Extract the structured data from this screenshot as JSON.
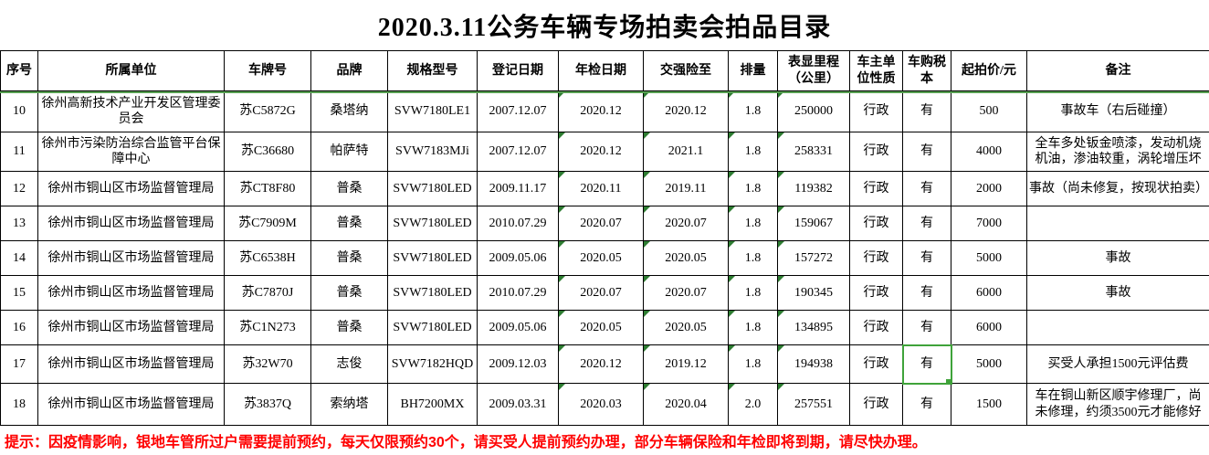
{
  "title": "2020.3.11公务车辆专场拍卖会拍品目录",
  "note": "提示：因疫情影响，银地车管所过户需要提前预约，每天仅限预约30个，请买受人提前预约办理，部分车辆保险和年检即将到期，请尽快办理。",
  "colors": {
    "selection_green": "#3fa33a",
    "flag_green": "#2e7d32",
    "pane_line_green": "#57a052",
    "note_red": "#ff0000",
    "grid_black": "#000000"
  },
  "table": {
    "headers": [
      "序号",
      "所属单位",
      "车牌号",
      "品牌",
      "规格型号",
      "登记日期",
      "年检日期",
      "交强险至",
      "排量",
      "表显里程（公里）",
      "车主单位性质",
      "车购税本",
      "起拍价/元",
      "备注"
    ],
    "flag_columns": [
      6,
      7,
      8,
      9
    ],
    "selection": {
      "row_index": 7,
      "col_index": 11
    },
    "rows": [
      [
        "10",
        "徐州高新技术产业开发区管理委员会",
        "苏C5872G",
        "桑塔纳",
        "SVW7180LE1",
        "2007.12.07",
        "2020.12",
        "2020.12",
        "1.8",
        "250000",
        "行政",
        "有",
        "500",
        "事故车（右后碰撞）"
      ],
      [
        "11",
        "徐州市污染防治综合监管平台保障中心",
        "苏C36680",
        "帕萨特",
        "SVW7183MJi",
        "2007.12.07",
        "2020.12",
        "2021.1",
        "1.8",
        "258331",
        "行政",
        "有",
        "4000",
        "全车多处钣金喷漆，发动机烧机油，渗油较重，涡轮增压坏"
      ],
      [
        "12",
        "徐州市铜山区市场监督管理局",
        "苏CT8F80",
        "普桑",
        "SVW7180LED",
        "2009.11.17",
        "2020.11",
        "2019.11",
        "1.8",
        "119382",
        "行政",
        "有",
        "2000",
        "事故（尚未修复，按现状拍卖）"
      ],
      [
        "13",
        "徐州市铜山区市场监督管理局",
        "苏C7909M",
        "普桑",
        "SVW7180LED",
        "2010.07.29",
        "2020.07",
        "2020.07",
        "1.8",
        "159067",
        "行政",
        "有",
        "7000",
        ""
      ],
      [
        "14",
        "徐州市铜山区市场监督管理局",
        "苏C6538H",
        "普桑",
        "SVW7180LED",
        "2009.05.06",
        "2020.05",
        "2020.05",
        "1.8",
        "157272",
        "行政",
        "有",
        "5000",
        "事故"
      ],
      [
        "15",
        "徐州市铜山区市场监督管理局",
        "苏C7870J",
        "普桑",
        "SVW7180LED",
        "2010.07.29",
        "2020.07",
        "2020.07",
        "1.8",
        "190345",
        "行政",
        "有",
        "6000",
        "事故"
      ],
      [
        "16",
        "徐州市铜山区市场监督管理局",
        "苏C1N273",
        "普桑",
        "SVW7180LED",
        "2009.05.06",
        "2020.05",
        "2020.05",
        "1.8",
        "134895",
        "行政",
        "有",
        "6000",
        ""
      ],
      [
        "17",
        "徐州市铜山区市场监督管理局",
        "苏32W70",
        "志俊",
        "SVW7182HQD",
        "2009.12.03",
        "2020.12",
        "2019.12",
        "1.8",
        "194938",
        "行政",
        "有",
        "5000",
        "买受人承担1500元评估费"
      ],
      [
        "18",
        "徐州市铜山区市场监督管理局",
        "苏3837Q",
        "索纳塔",
        "BH7200MX",
        "2009.03.31",
        "2020.03",
        "2020.04",
        "2.0",
        "257551",
        "行政",
        "有",
        "1500",
        "车在铜山新区顺宇修理厂，尚未修理，约须3500元才能修好"
      ]
    ]
  }
}
